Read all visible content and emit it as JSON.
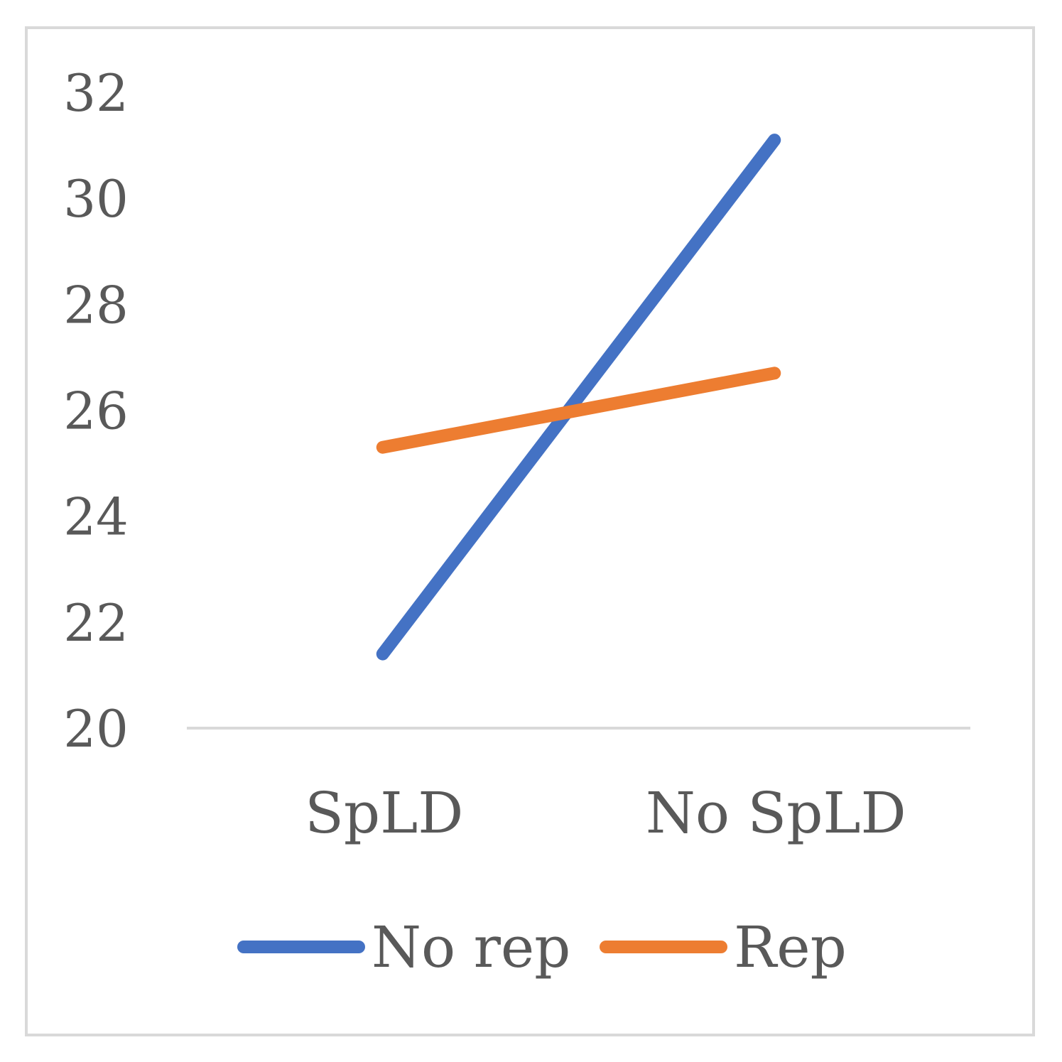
{
  "chart_data": {
    "type": "line",
    "categories": [
      "SpLD",
      "No SpLD"
    ],
    "series": [
      {
        "name": "No rep",
        "values": [
          21.4,
          31.1
        ],
        "color": "#4472c4"
      },
      {
        "name": "Rep",
        "values": [
          25.3,
          26.7
        ],
        "color": "#ed7d31"
      }
    ],
    "ylim": [
      20,
      32
    ],
    "yticks": [
      20,
      22,
      24,
      26,
      28,
      30,
      32
    ],
    "grid": false,
    "legend_position": "bottom"
  }
}
